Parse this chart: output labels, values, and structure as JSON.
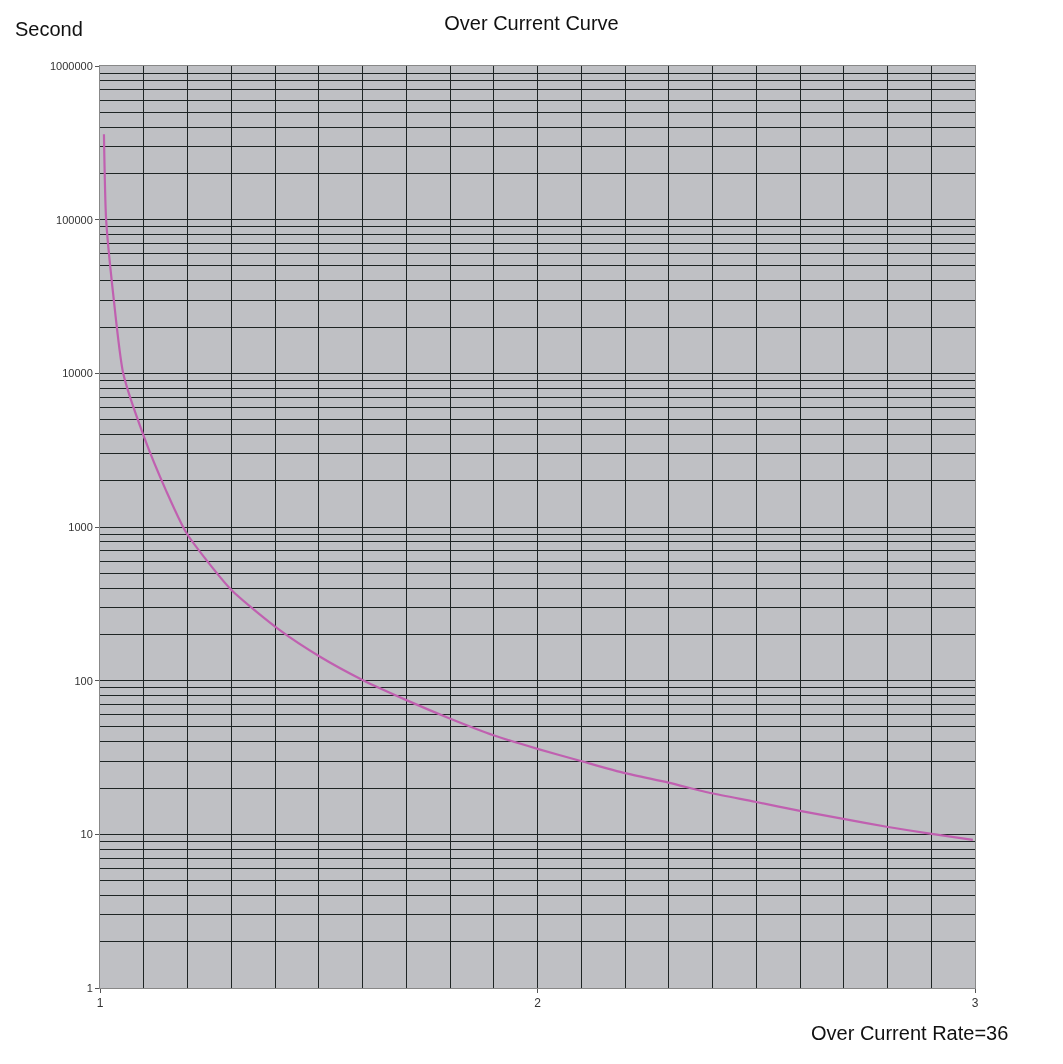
{
  "chart_data": {
    "type": "line",
    "title": "Over Current Curve",
    "ylabel": "Second",
    "xlabel": "Over Current Rate=36",
    "log": "y",
    "grid": true,
    "legend": false,
    "marker": "none",
    "line_style": "solid",
    "xlim": [
      1,
      3
    ],
    "xticks": [
      1,
      2,
      3
    ],
    "ylim": [
      1,
      1000000
    ],
    "yticks": [
      1,
      10,
      100,
      1000,
      10000,
      100000,
      1000000
    ],
    "x": [
      1.009,
      1.014,
      1.03,
      1.053,
      1.1,
      1.152,
      1.198,
      1.3,
      1.411,
      1.503,
      1.6,
      1.699,
      1.798,
      1.901,
      2.0,
      2.099,
      2.2,
      2.299,
      2.398,
      2.497,
      2.6,
      2.699,
      2.798,
      2.897,
      2.995
    ],
    "series": [
      {
        "color": "#c060b0",
        "values": [
          360000,
          100000,
          33000,
          10000,
          3900,
          1700,
          910,
          390,
          213,
          143,
          101,
          75,
          57,
          44,
          36,
          30,
          25,
          21.7,
          18.5,
          16.3,
          14.2,
          12.6,
          11.2,
          10.1,
          9.2
        ]
      }
    ]
  }
}
